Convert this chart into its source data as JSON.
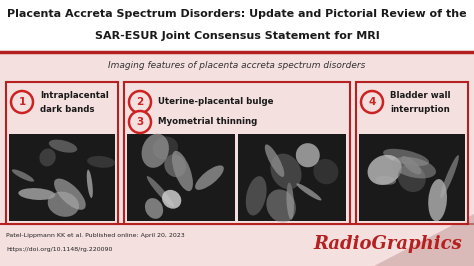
{
  "title_line1": "Placenta Accreta Spectrum Disorders: Update and Pictorial Review of the",
  "title_line2": "SAR-ESUR Joint Consensus Statement for MRI",
  "subtitle": "Imaging features of placenta accreta spectrum disorders",
  "bg_color": "#f5e0e0",
  "title_bg": "#ffffff",
  "title_color": "#1a1a1a",
  "subtitle_color": "#333333",
  "panel_bg": "#f5e0e0",
  "border_color": "#b52020",
  "accent_color": "#cc2222",
  "footer_line1": "Patel-Lippmann KK et al. Published online: April 20, 2023",
  "footer_line2": "https://doi.org/10.1148/rg.220090",
  "radiographics_text": "RadioGraphics",
  "radiographics_color": "#b52020",
  "panel1_num": "1",
  "panel1_label1": "Intraplacental",
  "panel1_label2": "dark bands",
  "panel2_num": "2",
  "panel2_label": "Uterine-placental bulge",
  "panel3_num": "3",
  "panel3_label": "Myometrial thinning",
  "panel4_num": "4",
  "panel4_label1": "Bladder wall",
  "panel4_label2": "interruption",
  "mri_color1": "#7a7a7a",
  "mri_color2": "#606060",
  "title_fontsize": 8.0,
  "subtitle_fontsize": 6.5,
  "label_fontsize": 6.2,
  "num_fontsize": 7.5,
  "footer_fontsize": 4.5,
  "radio_fontsize": 13
}
